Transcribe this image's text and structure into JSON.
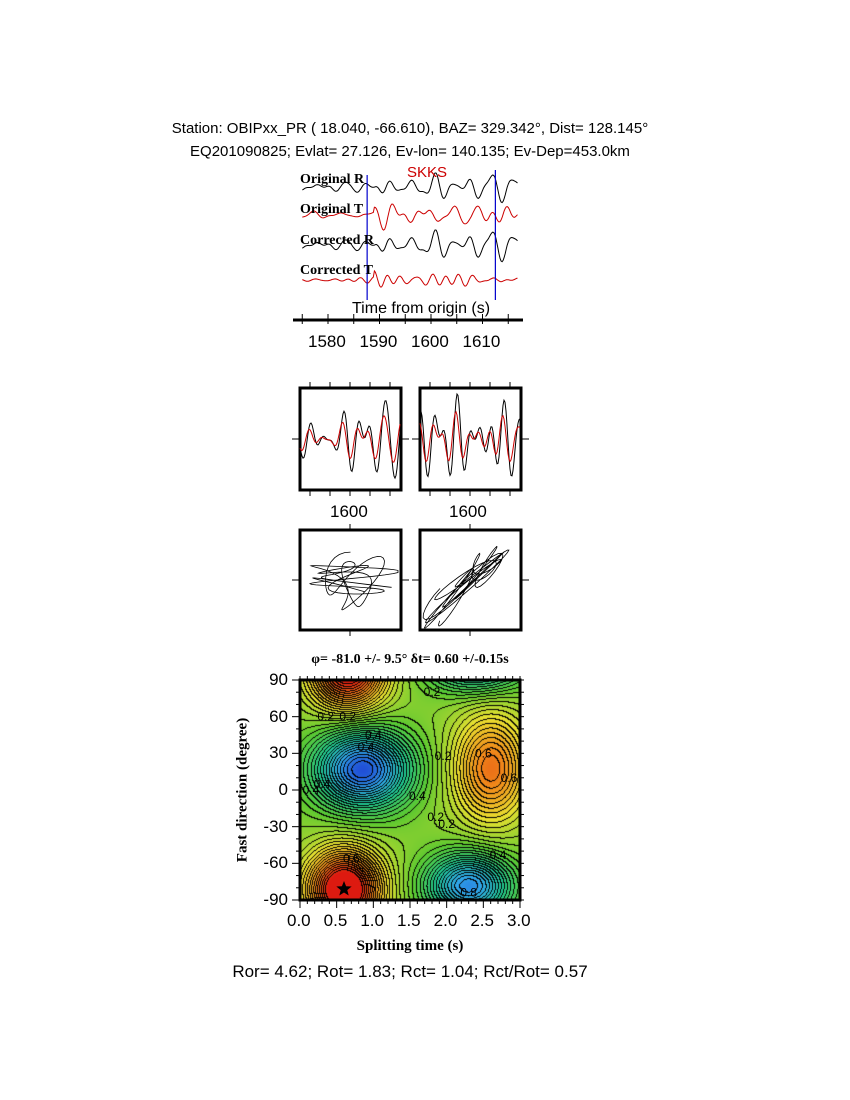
{
  "header": {
    "line1": "Station: OBIPxx_PR (  18.040,  -66.610), BAZ=  329.342°, Dist=  128.145°",
    "line2": "EQ201090825; Evlat=  27.126, Ev-lon= 140.135; Ev-Dep=453.0km"
  },
  "footer": "Ror= 4.62; Rot= 1.83; Rct= 1.04; Rct/Rot= 0.57",
  "chart_data": [
    {
      "type": "line",
      "panel": "waveforms",
      "traces": [
        {
          "name": "Original R",
          "color": "#000000"
        },
        {
          "name": "Original T",
          "color": "#cc0000"
        },
        {
          "name": "Corrected R",
          "color": "#000000"
        },
        {
          "name": "Corrected T",
          "color": "#cc0000"
        }
      ],
      "phase": {
        "label": "SKKS",
        "color": "#cc0000"
      },
      "window_markers_s": [
        1587.6,
        1612.5
      ],
      "marker_color": "#0000cc",
      "xlabel": "Time from origin (s)",
      "xlim": [
        1573,
        1617
      ],
      "xticks": [
        "1580",
        "1590",
        "1600",
        "1610"
      ]
    },
    {
      "type": "line",
      "panel": "fast-slow components",
      "panels": [
        {
          "name": "original",
          "xtick": "1600"
        },
        {
          "name": "corrected",
          "xtick": "1600"
        }
      ],
      "colors": [
        "#000000",
        "#cc0000"
      ]
    },
    {
      "type": "scatter",
      "panel": "particle motion",
      "panels": [
        "original",
        "corrected"
      ]
    },
    {
      "type": "heatmap",
      "panel": "energy grid search",
      "title": "φ= -81.0 +/- 9.5° δt= 0.60 +/-0.15s",
      "xlabel": "Splitting time (s)",
      "ylabel": "Fast direction (degree)",
      "xlim": [
        0,
        3.0
      ],
      "ylim": [
        -90,
        90
      ],
      "xticks": [
        "0.0",
        "0.5",
        "1.0",
        "1.5",
        "2.0",
        "2.5",
        "3.0"
      ],
      "yticks": [
        "90",
        "60",
        "30",
        "0",
        "-30",
        "-60",
        "-90"
      ],
      "contour_labels": [
        "0.2",
        "0.4",
        "0.6",
        "0.8"
      ],
      "minima": [
        {
          "dt": 0.6,
          "phi": -81,
          "value": 0.0
        },
        {
          "dt": 2.6,
          "phi": 18,
          "value": 0.15
        }
      ],
      "maxima": [
        {
          "dt": 0.85,
          "phi": 17,
          "value": 0.95
        },
        {
          "dt": 2.3,
          "phi": -78,
          "value": 0.85
        }
      ],
      "best_fit": {
        "dt": 0.6,
        "phi": -81.0,
        "marker": "star"
      },
      "colormap": [
        "#dd1a10",
        "#f08a1a",
        "#e8e030",
        "#5cc830",
        "#20c890",
        "#30a8e8",
        "#1a2ad0"
      ]
    }
  ]
}
